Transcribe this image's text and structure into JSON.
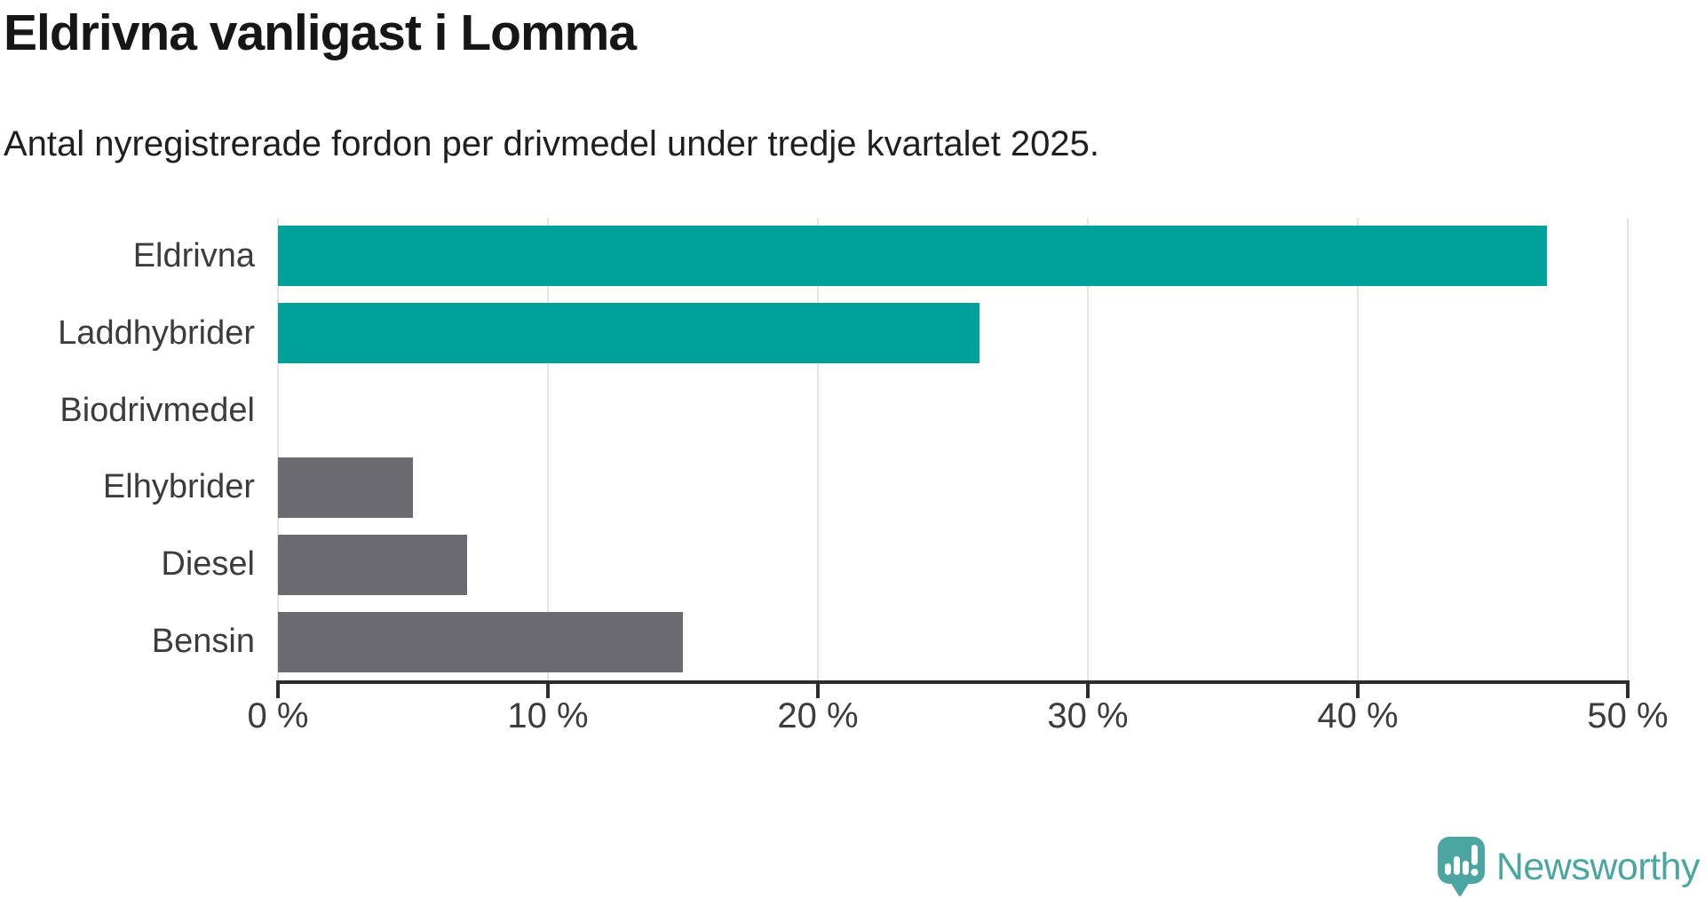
{
  "header": {
    "title": "Eldrivna vanligast i Lomma",
    "subtitle": "Antal nyregistrerade fordon per drivmedel under tredje kvartalet 2025."
  },
  "chart_data": {
    "type": "bar",
    "orientation": "horizontal",
    "title": "Eldrivna vanligast i Lomma",
    "subtitle": "Antal nyregistrerade fordon per drivmedel under tredje kvartalet 2025.",
    "categories": [
      "Eldrivna",
      "Laddhybrider",
      "Biodrivmedel",
      "Elhybrider",
      "Diesel",
      "Bensin"
    ],
    "values": [
      47,
      26,
      0,
      5,
      7,
      15
    ],
    "value_unit": "%",
    "xlim": [
      0,
      50
    ],
    "xticks": [
      0,
      10,
      20,
      30,
      40,
      50
    ],
    "xtick_suffix": " %",
    "grid": "vertical",
    "legend": "none",
    "bar_colors": [
      "#00a19a",
      "#00a19a",
      "#6a6a70",
      "#6a6a70",
      "#6a6a70",
      "#6a6a70"
    ]
  },
  "colors": {
    "highlight_teal": "#00a19a",
    "neutral_gray": "#6a6a70",
    "axis": "#2d2d2d",
    "gridline": "#e4e4e4",
    "label_text": "#3c3c3c",
    "brand_teal": "#4ba6a1"
  },
  "branding": {
    "logo_text": "Newsworthy",
    "logo_icon": "newsworthy-speech-bubble-chart-icon"
  }
}
